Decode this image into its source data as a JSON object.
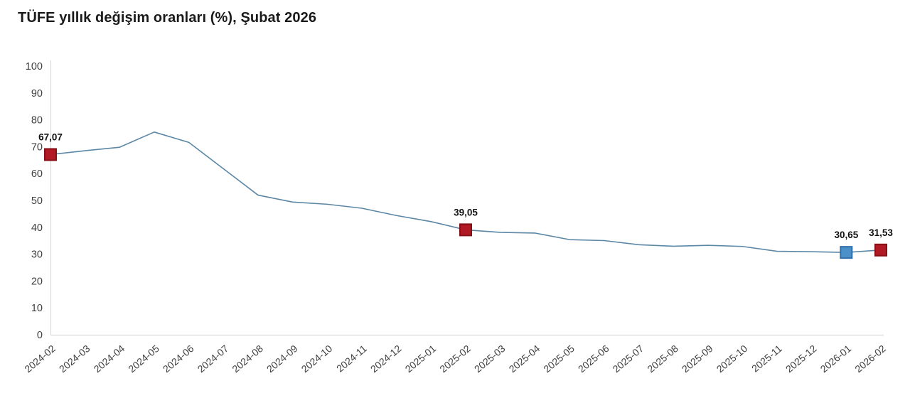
{
  "page": {
    "title": "TÜFE yıllık değişim oranları (%), Şubat 2026"
  },
  "chart_data": {
    "type": "line",
    "title": "TÜFE yıllık değişim oranları (%), Şubat 2026",
    "xlabel": "",
    "ylabel": "",
    "ylim": [
      0,
      100
    ],
    "ytick_step": 10,
    "grid": false,
    "legend": false,
    "categories": [
      "2024-02",
      "2024-03",
      "2024-04",
      "2024-05",
      "2024-06",
      "2024-07",
      "2024-08",
      "2024-09",
      "2024-10",
      "2024-11",
      "2024-12",
      "2025-01",
      "2025-02",
      "2025-03",
      "2025-04",
      "2025-05",
      "2025-06",
      "2025-07",
      "2025-08",
      "2025-09",
      "2025-10",
      "2025-11",
      "2025-12",
      "2026-01",
      "2026-02"
    ],
    "series": [
      {
        "name": "TÜFE yıllık değişim oranı (%)",
        "values": [
          67.07,
          68.5,
          69.8,
          75.45,
          71.6,
          61.78,
          51.97,
          49.38,
          48.58,
          47.09,
          44.38,
          42.12,
          39.05,
          38.1,
          37.86,
          35.41,
          35.05,
          33.52,
          32.95,
          33.29,
          32.87,
          31.07,
          30.9,
          30.65,
          31.53
        ]
      }
    ],
    "markers": [
      {
        "category": "2024-02",
        "index": 0,
        "value": 67.07,
        "label": "67,07",
        "fill": "#b11a25",
        "stroke": "#871016"
      },
      {
        "category": "2025-02",
        "index": 12,
        "value": 39.05,
        "label": "39,05",
        "fill": "#b11a25",
        "stroke": "#871016"
      },
      {
        "category": "2026-01",
        "index": 23,
        "value": 30.65,
        "label": "30,65",
        "fill": "#4b90c8",
        "stroke": "#2f6ea8"
      },
      {
        "category": "2026-02",
        "index": 24,
        "value": 31.53,
        "label": "31,53",
        "fill": "#b11a25",
        "stroke": "#871016"
      }
    ],
    "colors": {
      "line": "#5b87a5",
      "axis": "#d9d9d9",
      "tick_label": "#3f3f3f",
      "data_label": "#111111",
      "marker_red": "#b11a25",
      "marker_blue": "#4b90c8"
    }
  }
}
